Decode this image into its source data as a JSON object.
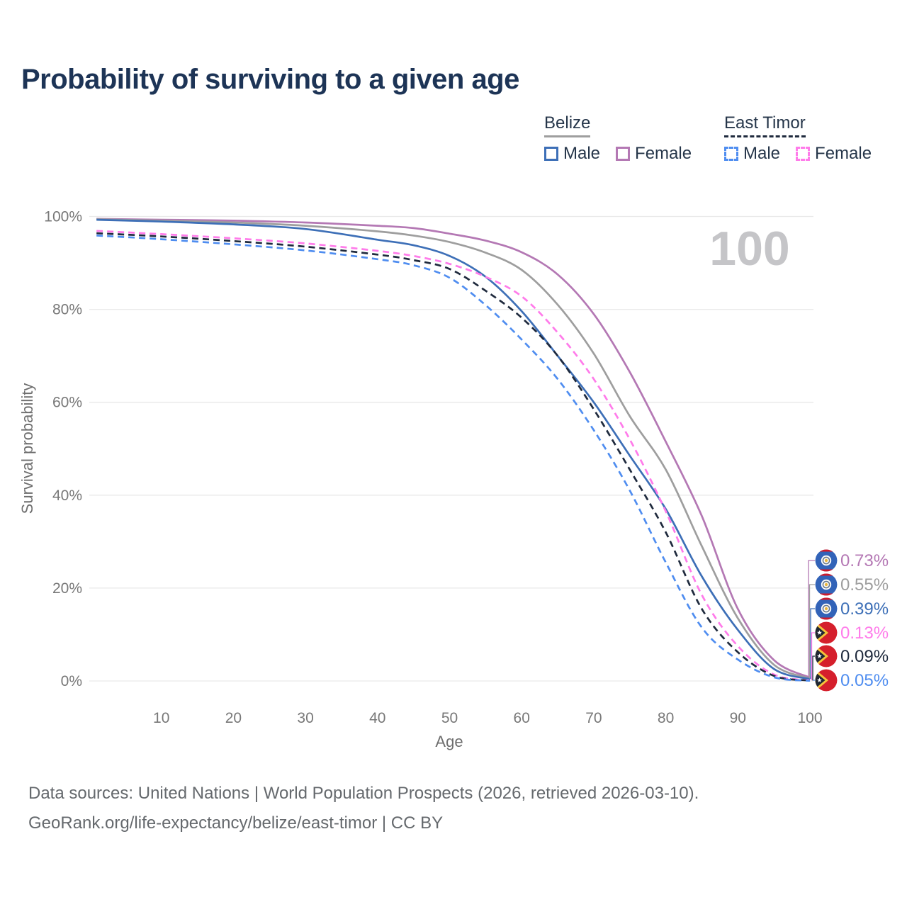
{
  "title": "Probability of surviving to a given age",
  "watermark": "100",
  "legend": {
    "groups": [
      {
        "name": "Belize",
        "line_style": "solid",
        "underline_color": "#9e9e9e",
        "items": [
          {
            "label": "Male",
            "color": "#3d6fb7"
          },
          {
            "label": "Female",
            "color": "#b478b4"
          }
        ]
      },
      {
        "name": "East Timor",
        "line_style": "dashed",
        "underline_color": "#1f2a3d",
        "items": [
          {
            "label": "Male",
            "color": "#4f8df0"
          },
          {
            "label": "Female",
            "color": "#ff7bea"
          }
        ]
      }
    ]
  },
  "chart_data": {
    "type": "line",
    "title": "Probability of surviving to a given age",
    "xlabel": "Age",
    "ylabel": "Survival probability",
    "xlim": [
      0,
      100
    ],
    "ylim": [
      0,
      100
    ],
    "grid": true,
    "x_ticks": [
      10,
      20,
      30,
      40,
      50,
      60,
      70,
      80,
      90,
      100
    ],
    "y_ticks": [
      {
        "value": 0,
        "label": "0%"
      },
      {
        "value": 20,
        "label": "20%"
      },
      {
        "value": 40,
        "label": "40%"
      },
      {
        "value": 60,
        "label": "60%"
      },
      {
        "value": 80,
        "label": "80%"
      },
      {
        "value": 100,
        "label": "100%"
      }
    ],
    "x": [
      1,
      10,
      20,
      30,
      40,
      45,
      50,
      55,
      60,
      65,
      70,
      75,
      80,
      85,
      90,
      95,
      100
    ],
    "series": [
      {
        "name": "Belize Female",
        "country": "Belize",
        "sex": "Female",
        "color": "#b478b4",
        "dash": "solid",
        "flag": "belize",
        "end_label": "0.73%",
        "values": [
          99.5,
          99.3,
          99.1,
          98.7,
          98.0,
          97.5,
          96.3,
          94.8,
          92.3,
          87.5,
          79.0,
          66.5,
          51.5,
          35.5,
          15.5,
          4.5,
          0.73
        ]
      },
      {
        "name": "Belize",
        "country": "Belize",
        "sex": "Both",
        "color": "#9e9e9e",
        "dash": "solid",
        "flag": "belize",
        "end_label": "0.55%",
        "values": [
          99.4,
          99.1,
          98.7,
          98.0,
          96.8,
          95.9,
          94.5,
          92.2,
          88.5,
          81.0,
          70.5,
          57.0,
          45.5,
          29.0,
          13.5,
          3.5,
          0.55
        ]
      },
      {
        "name": "Belize Male",
        "country": "Belize",
        "sex": "Male",
        "color": "#3d6fb7",
        "dash": "solid",
        "flag": "belize",
        "end_label": "0.39%",
        "values": [
          99.3,
          98.9,
          98.3,
          97.3,
          95.0,
          93.8,
          91.5,
          87.0,
          79.6,
          70.0,
          60.0,
          48.5,
          37.0,
          22.5,
          11.0,
          2.6,
          0.39
        ]
      },
      {
        "name": "East Timor Female",
        "country": "East Timor",
        "sex": "Female",
        "color": "#ff7bea",
        "dash": "dashed",
        "flag": "east-timor",
        "end_label": "0.13%",
        "values": [
          96.9,
          96.2,
          95.3,
          94.2,
          92.6,
          91.5,
          89.8,
          87.0,
          82.8,
          75.0,
          65.0,
          52.0,
          36.5,
          18.5,
          7.5,
          1.4,
          0.13
        ]
      },
      {
        "name": "East Timor",
        "country": "East Timor",
        "sex": "Both",
        "color": "#1f2a3d",
        "dash": "dashed",
        "flag": "east-timor",
        "end_label": "0.09%",
        "values": [
          96.4,
          95.7,
          94.7,
          93.5,
          91.8,
          90.6,
          88.7,
          84.0,
          78.2,
          70.0,
          58.5,
          45.5,
          32.0,
          15.5,
          6.2,
          1.1,
          0.09
        ]
      },
      {
        "name": "East Timor Male",
        "country": "East Timor",
        "sex": "Male",
        "color": "#4f8df0",
        "dash": "dashed",
        "flag": "east-timor",
        "end_label": "0.05%",
        "values": [
          95.9,
          95.1,
          94.0,
          92.7,
          90.8,
          89.5,
          86.8,
          80.9,
          73.5,
          65.0,
          54.0,
          41.0,
          25.5,
          11.5,
          4.6,
          0.8,
          0.05
        ]
      }
    ],
    "legend_position": "top-right",
    "colors": {
      "grid": "#e9e9e9",
      "tick_label": "#787878",
      "axis_title": "#6e6e6e",
      "title": "#1d3456",
      "watermark": "#c5c5c8",
      "flag_belize_blue": "#3263b8",
      "flag_belize_red": "#cf1b2b",
      "flag_timor_red": "#d51f2c",
      "flag_timor_yellow": "#f5c33b",
      "flag_timor_black": "#202733"
    }
  },
  "footer": {
    "line1": "Data sources: United Nations | World Population Prospects (2026, retrieved 2026-03-10).",
    "line2": "GeoRank.org/life-expectancy/belize/east-timor | CC BY"
  }
}
